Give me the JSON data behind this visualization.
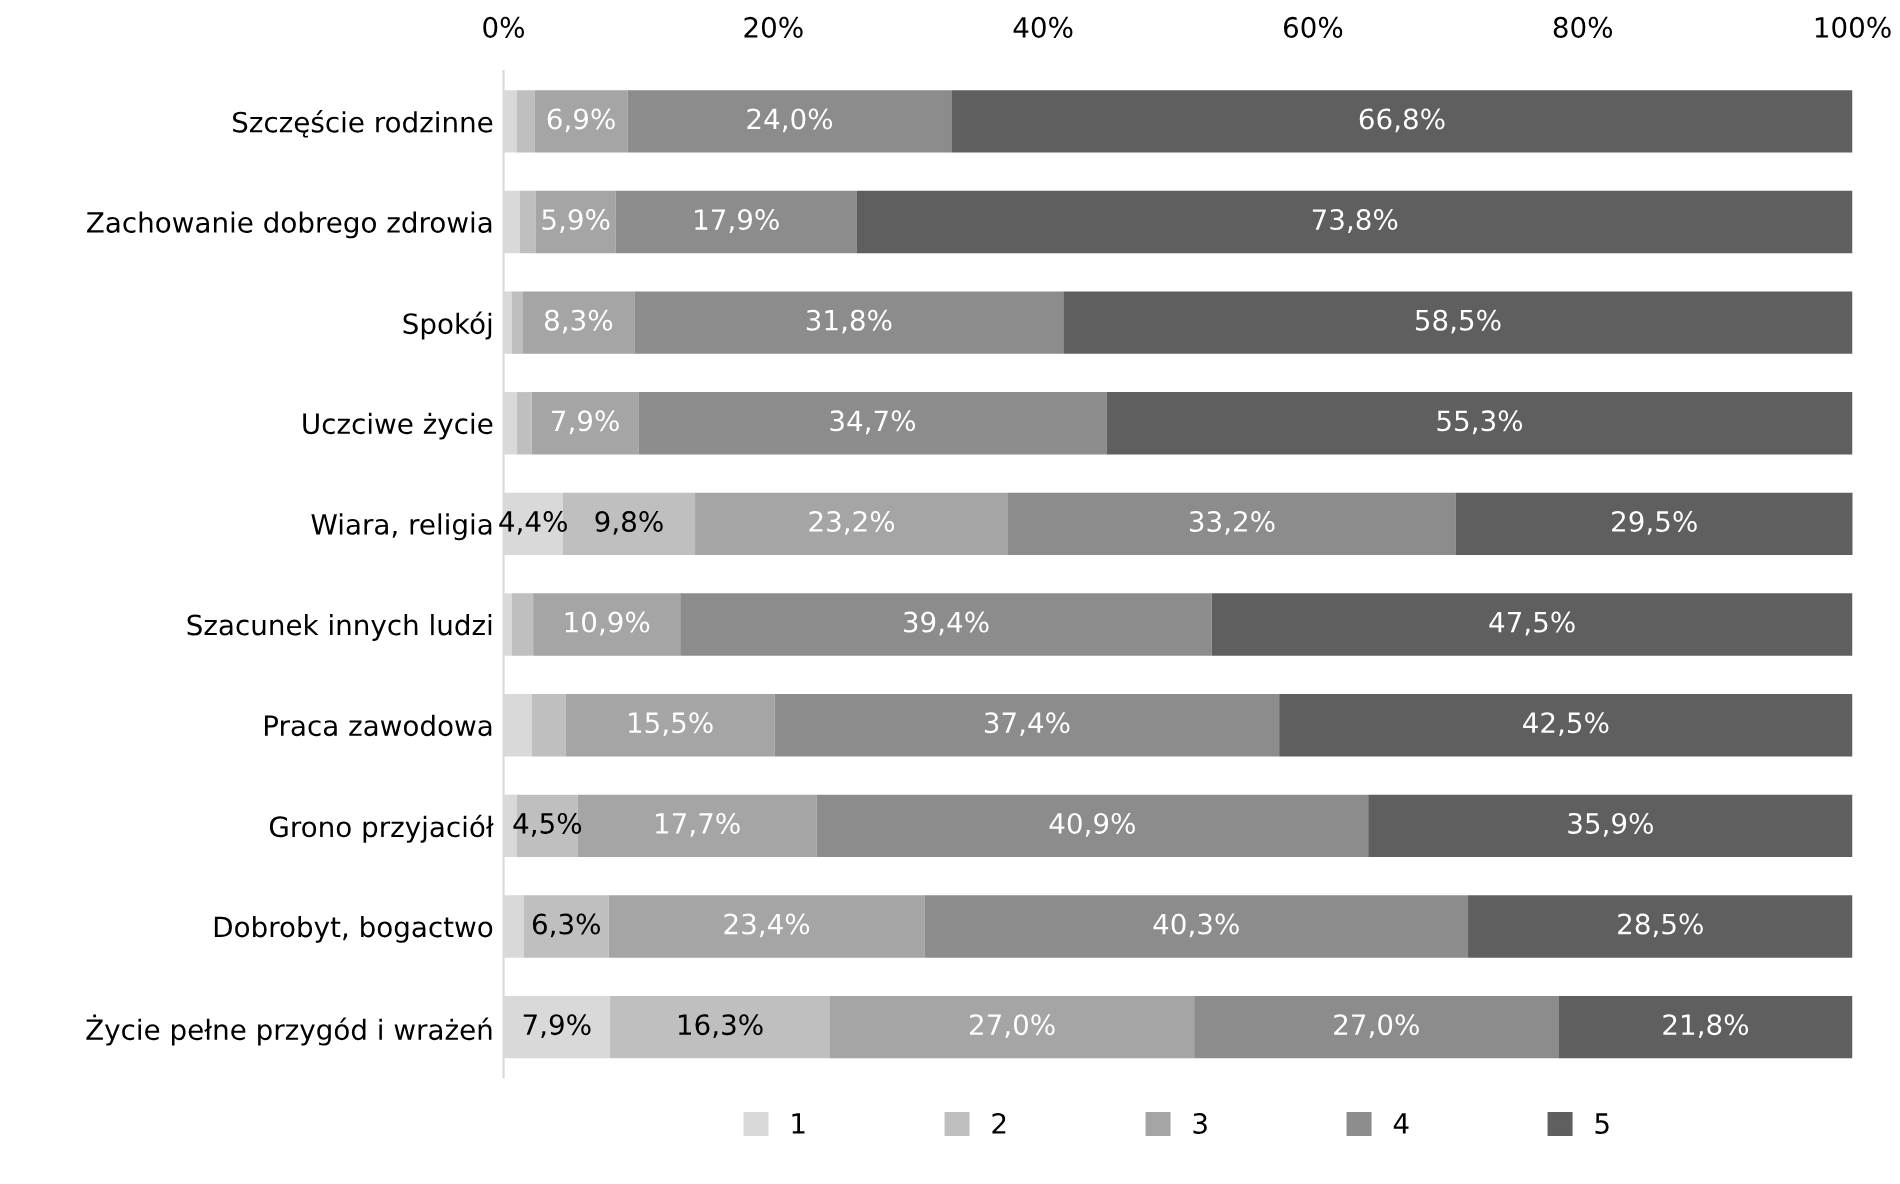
{
  "chart_data": {
    "type": "bar",
    "orientation": "horizontal",
    "stacked": true,
    "categories": [
      "Szczęście rodzinne",
      "Zachowanie dobrego zdrowia",
      "Spokój",
      "Uczciwe życie",
      "Wiara, religia",
      "Szacunek innych ludzi",
      "Praca zawodowa",
      "Grono przyjaciół",
      "Dobrobyt, bogactwo",
      "Życie pełne przygód i wrażeń"
    ],
    "series": [
      {
        "name": "1",
        "color": "#d9d9d9",
        "values": [
          1.0,
          1.2,
          0.6,
          1.0,
          4.4,
          0.6,
          2.1,
          1.0,
          1.5,
          7.9
        ],
        "value_labels": [
          null,
          null,
          null,
          null,
          "4,4%",
          null,
          null,
          null,
          null,
          "7,9%"
        ]
      },
      {
        "name": "2",
        "color": "#bfbfbf",
        "values": [
          1.3,
          1.2,
          0.8,
          1.1,
          9.8,
          1.6,
          2.5,
          4.5,
          6.3,
          16.3
        ],
        "value_labels": [
          null,
          null,
          null,
          null,
          "9,8%",
          null,
          null,
          "4,5%",
          "6,3%",
          "16,3%"
        ]
      },
      {
        "name": "3",
        "color": "#a5a5a5",
        "values": [
          6.9,
          5.9,
          8.3,
          7.9,
          23.2,
          10.9,
          15.5,
          17.7,
          23.4,
          27.0
        ],
        "value_labels": [
          "6,9%",
          "5,9%",
          "8,3%",
          "7,9%",
          "23,2%",
          "10,9%",
          "15,5%",
          "17,7%",
          "23,4%",
          "27,0%"
        ]
      },
      {
        "name": "4",
        "color": "#8c8c8c",
        "values": [
          24.0,
          17.9,
          31.8,
          34.7,
          33.2,
          39.4,
          37.4,
          40.9,
          40.3,
          27.0
        ],
        "value_labels": [
          "24,0%",
          "17,9%",
          "31,8%",
          "34,7%",
          "33,2%",
          "39,4%",
          "37,4%",
          "40,9%",
          "40,3%",
          "27,0%"
        ]
      },
      {
        "name": "5",
        "color": "#5f5f5f",
        "values": [
          66.8,
          73.8,
          58.5,
          55.3,
          29.5,
          47.5,
          42.5,
          35.9,
          28.5,
          21.8
        ],
        "value_labels": [
          "66,8%",
          "73,8%",
          "58,5%",
          "55,3%",
          "29,5%",
          "47,5%",
          "42,5%",
          "35,9%",
          "28,5%",
          "21,8%"
        ]
      }
    ],
    "xlim": [
      0,
      100
    ],
    "xticks": [
      {
        "value": 0,
        "label": "0%"
      },
      {
        "value": 20,
        "label": "20%"
      },
      {
        "value": 40,
        "label": "40%"
      },
      {
        "value": 60,
        "label": "60%"
      },
      {
        "value": 80,
        "label": "80%"
      },
      {
        "value": 100,
        "label": "100%"
      }
    ],
    "grid": false,
    "legend": "bottom"
  }
}
